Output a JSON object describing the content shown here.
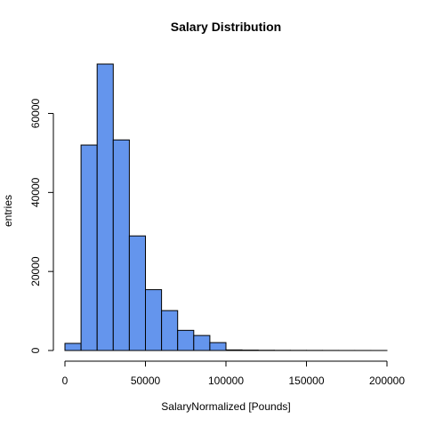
{
  "colors": {
    "bar_fill": "#6495ED",
    "bar_stroke": "#000000",
    "axis": "#000000",
    "background": "#ffffff"
  },
  "chart_data": {
    "type": "bar",
    "title": "Salary Distribution",
    "xlabel": "SalaryNormalized [Pounds]",
    "ylabel": "entries",
    "xlim": [
      0,
      200000
    ],
    "ylim": [
      0,
      72500
    ],
    "bin_width": 10000,
    "bins": [
      {
        "start": 0,
        "end": 10000,
        "count": 1800
      },
      {
        "start": 10000,
        "end": 20000,
        "count": 52000
      },
      {
        "start": 20000,
        "end": 30000,
        "count": 72500
      },
      {
        "start": 30000,
        "end": 40000,
        "count": 53300
      },
      {
        "start": 40000,
        "end": 50000,
        "count": 29000
      },
      {
        "start": 50000,
        "end": 60000,
        "count": 15400
      },
      {
        "start": 60000,
        "end": 70000,
        "count": 10100
      },
      {
        "start": 70000,
        "end": 80000,
        "count": 5100
      },
      {
        "start": 80000,
        "end": 90000,
        "count": 3800
      },
      {
        "start": 90000,
        "end": 100000,
        "count": 2000
      },
      {
        "start": 100000,
        "end": 110000,
        "count": 150
      },
      {
        "start": 110000,
        "end": 120000,
        "count": 100
      },
      {
        "start": 120000,
        "end": 130000,
        "count": 60
      },
      {
        "start": 130000,
        "end": 140000,
        "count": 40
      },
      {
        "start": 140000,
        "end": 150000,
        "count": 30
      },
      {
        "start": 150000,
        "end": 160000,
        "count": 25
      },
      {
        "start": 160000,
        "end": 170000,
        "count": 15
      },
      {
        "start": 170000,
        "end": 180000,
        "count": 10
      },
      {
        "start": 180000,
        "end": 190000,
        "count": 8
      },
      {
        "start": 190000,
        "end": 200000,
        "count": 5
      }
    ],
    "x_ticks": [
      {
        "value": 0,
        "label": "0"
      },
      {
        "value": 50000,
        "label": "50000"
      },
      {
        "value": 100000,
        "label": "100000"
      },
      {
        "value": 150000,
        "label": "150000"
      },
      {
        "value": 200000,
        "label": "200000"
      }
    ],
    "y_ticks": [
      {
        "value": 0,
        "label": "0"
      },
      {
        "value": 20000,
        "label": "20000"
      },
      {
        "value": 40000,
        "label": "40000"
      },
      {
        "value": 60000,
        "label": "60000"
      }
    ],
    "grid": false,
    "legend": "none"
  }
}
